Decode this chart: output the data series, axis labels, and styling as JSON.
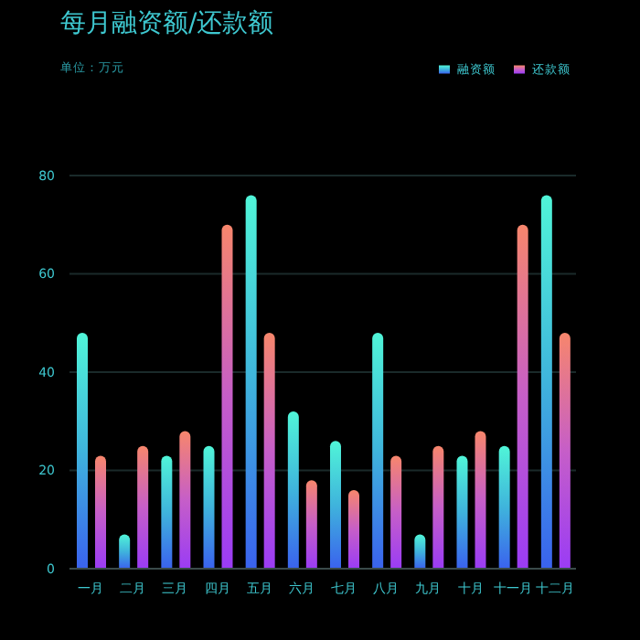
{
  "chart_data": {
    "type": "bar",
    "title": "每月融资额/还款额",
    "subtitle": "单位：万元",
    "categories": [
      "一月",
      "二月",
      "三月",
      "四月",
      "五月",
      "六月",
      "七月",
      "八月",
      "九月",
      "十月",
      "十一月",
      "十二月"
    ],
    "series": [
      {
        "name": "融资额",
        "color": "#3fb4dc",
        "values": [
          48,
          7,
          23,
          25,
          76,
          32,
          26,
          48,
          7,
          23,
          25,
          76
        ]
      },
      {
        "name": "还款额",
        "color": "#c65ec8",
        "values": [
          23,
          25,
          28,
          70,
          48,
          18,
          16,
          23,
          25,
          28,
          70,
          48
        ]
      }
    ],
    "ylim": [
      0,
      80
    ],
    "yticks": [
      0,
      20,
      40,
      60,
      80
    ],
    "grid": "y",
    "legend": "top right"
  }
}
